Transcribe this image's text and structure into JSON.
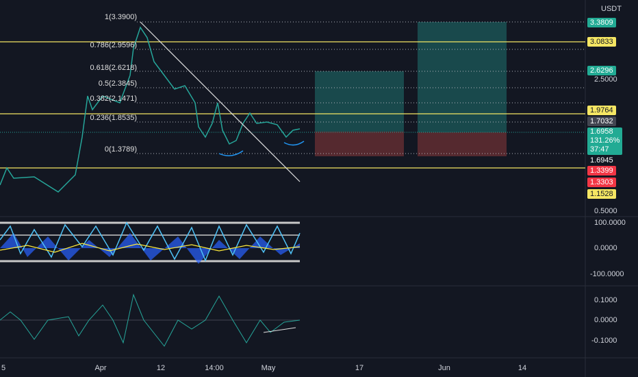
{
  "header": {
    "currency": "USDT"
  },
  "price_axis": {
    "labels": [
      "3.3809",
      "3.0833",
      "2.6296",
      "2.5000",
      "1.9764",
      "1.7032",
      "1.6958",
      "131.26%",
      "37:47",
      "1.6945",
      "1.3399",
      "1.3303",
      "1.1528",
      "0.5000"
    ]
  },
  "fib_levels": [
    "1(3.3900)",
    "0.786(2.9596)",
    "0.618(2.6218)",
    "0.5(2.3845)",
    "0.382(2.1471)",
    "0.236(1.8535)",
    "0(1.3789)"
  ],
  "oscillator_axis": [
    "100.0000",
    "0.0000",
    "-100.0000"
  ],
  "macd_axis": [
    "0.1000",
    "0.0000",
    "-0.1000"
  ],
  "time_axis": [
    "5",
    "Apr",
    "12",
    "14:00",
    "May",
    "17",
    "Jun",
    "14"
  ]
}
